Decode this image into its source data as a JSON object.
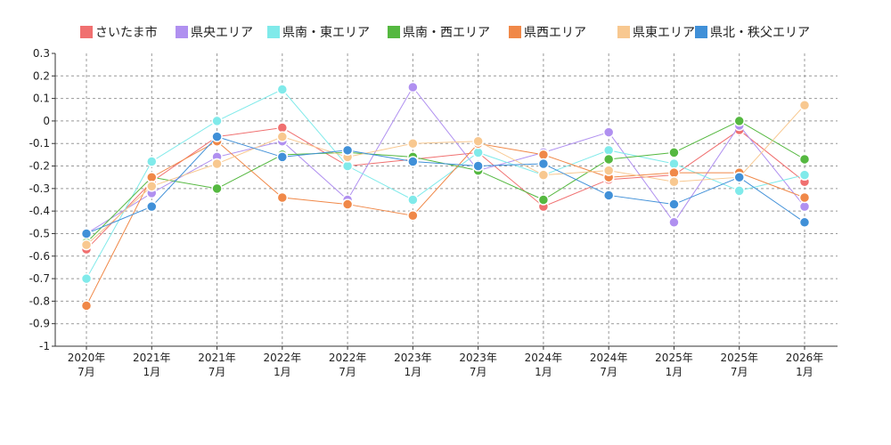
{
  "chart_data": {
    "type": "line",
    "title": "",
    "xlabel": "",
    "ylabel": "",
    "ylim": [
      -1,
      0.3
    ],
    "yticks": [
      "0.3",
      "0.2",
      "0.1",
      "0",
      "-0.1",
      "-0.2",
      "-0.3",
      "-0.4",
      "-0.5",
      "-0.6",
      "-0.7",
      "-0.8",
      "-0.9",
      "-1"
    ],
    "ytick_values": [
      0.3,
      0.2,
      0.1,
      0,
      -0.1,
      -0.2,
      -0.3,
      -0.4,
      -0.5,
      -0.6,
      -0.7,
      -0.8,
      -0.9,
      -1
    ],
    "categories": [
      [
        "2020年",
        "7月"
      ],
      [
        "2021年",
        "1月"
      ],
      [
        "2021年",
        "7月"
      ],
      [
        "2022年",
        "1月"
      ],
      [
        "2022年",
        "7月"
      ],
      [
        "2023年",
        "1月"
      ],
      [
        "2023年",
        "7月"
      ],
      [
        "2024年",
        "1月"
      ],
      [
        "2024年",
        "7月"
      ],
      [
        "2025年",
        "1月"
      ],
      [
        "2025年",
        "7月"
      ],
      [
        "2026年",
        "1月"
      ]
    ],
    "grid": true,
    "legend_position": "top",
    "series": [
      {
        "name": "さいたま市",
        "color": "#f07070",
        "values": [
          -0.57,
          -0.27,
          -0.07,
          -0.03,
          -0.2,
          -0.17,
          -0.14,
          -0.38,
          -0.26,
          -0.24,
          -0.04,
          -0.27
        ]
      },
      {
        "name": "県央エリア",
        "color": "#b090f0",
        "values": [
          -0.5,
          -0.32,
          -0.16,
          -0.09,
          -0.35,
          0.15,
          -0.22,
          -0.14,
          -0.05,
          -0.45,
          -0.02,
          -0.38
        ]
      },
      {
        "name": "県南・東エリア",
        "color": "#80eaea",
        "values": [
          -0.7,
          -0.18,
          0.0,
          0.14,
          -0.2,
          -0.35,
          -0.14,
          -0.24,
          -0.13,
          -0.19,
          -0.31,
          -0.24
        ]
      },
      {
        "name": "県南・西エリア",
        "color": "#55b840",
        "values": [
          -0.54,
          -0.25,
          -0.3,
          -0.15,
          -0.14,
          -0.16,
          -0.22,
          -0.35,
          -0.17,
          -0.14,
          0.0,
          -0.17
        ]
      },
      {
        "name": "県西エリア",
        "color": "#f08848",
        "values": [
          -0.82,
          -0.25,
          -0.09,
          -0.34,
          -0.37,
          -0.42,
          -0.1,
          -0.15,
          -0.25,
          -0.23,
          -0.23,
          -0.34
        ]
      },
      {
        "name": "県東エリア",
        "color": "#f8c890",
        "values": [
          -0.55,
          -0.29,
          -0.19,
          -0.07,
          -0.16,
          -0.1,
          -0.09,
          -0.24,
          -0.22,
          -0.27,
          -0.25,
          0.07
        ]
      },
      {
        "name": "県北・秩父エリア",
        "color": "#4090d8",
        "values": [
          -0.5,
          -0.38,
          -0.07,
          -0.16,
          -0.13,
          -0.18,
          -0.2,
          -0.19,
          -0.33,
          -0.37,
          -0.25,
          -0.45
        ]
      }
    ]
  }
}
